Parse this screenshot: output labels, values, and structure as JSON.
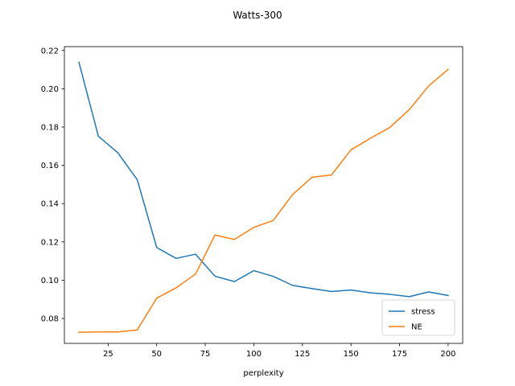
{
  "chart_data": {
    "type": "line",
    "title": "Watts-300",
    "xlabel": "perplexity",
    "ylabel": "",
    "xlim": [
      2.5,
      207.5
    ],
    "ylim": [
      0.067,
      0.222
    ],
    "xticks": [
      25,
      50,
      75,
      100,
      125,
      150,
      175,
      200
    ],
    "yticks": [
      0.08,
      0.1,
      0.12,
      0.14,
      0.16,
      0.18,
      0.2,
      0.22
    ],
    "ytick_labels": [
      "0.08",
      "0.10",
      "0.12",
      "0.14",
      "0.16",
      "0.18",
      "0.20",
      "0.22"
    ],
    "grid": false,
    "legend_position": "bottom-right",
    "x": [
      10,
      20,
      30,
      40,
      50,
      60,
      70,
      80,
      90,
      100,
      110,
      120,
      130,
      140,
      150,
      160,
      170,
      180,
      190,
      200
    ],
    "series": [
      {
        "name": "stress",
        "color": "#1f77b4",
        "values": [
          0.2138,
          0.1752,
          0.1666,
          0.1525,
          0.1171,
          0.1114,
          0.1136,
          0.1021,
          0.0993,
          0.105,
          0.102,
          0.0973,
          0.0956,
          0.0941,
          0.0949,
          0.0934,
          0.0926,
          0.0914,
          0.0939,
          0.092
        ]
      },
      {
        "name": "NE",
        "color": "#ff7f0e",
        "values": [
          0.0728,
          0.073,
          0.073,
          0.074,
          0.0906,
          0.096,
          0.1032,
          0.1236,
          0.1213,
          0.1276,
          0.1312,
          0.1448,
          0.1538,
          0.155,
          0.1681,
          0.1741,
          0.1798,
          0.1891,
          0.2015,
          0.2101
        ]
      }
    ]
  }
}
